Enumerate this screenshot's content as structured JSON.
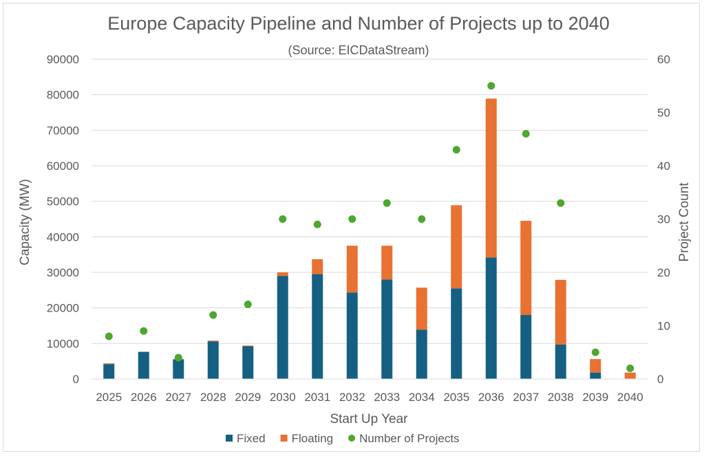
{
  "chart_data": {
    "type": "bar",
    "stacked": true,
    "title": "Europe Capacity Pipeline and Number of Projects up to 2040",
    "subtitle": "(Source: EICDataStream)",
    "xlabel": "Start Up Year",
    "ylabel": "Capacity (MW)",
    "y2label": "Project Count",
    "ylim": [
      0,
      90000
    ],
    "y2lim": [
      0,
      60
    ],
    "yticks": [
      "0",
      "10000",
      "20000",
      "30000",
      "40000",
      "50000",
      "60000",
      "70000",
      "80000",
      "90000"
    ],
    "y2ticks": [
      "0",
      "10",
      "20",
      "30",
      "40",
      "50",
      "60"
    ],
    "grid": true,
    "legend_position": "bottom",
    "categories": [
      "2025",
      "2026",
      "2027",
      "2028",
      "2029",
      "2030",
      "2031",
      "2032",
      "2033",
      "2034",
      "2035",
      "2036",
      "2037",
      "2038",
      "2039",
      "2040"
    ],
    "series": [
      {
        "name": "Fixed",
        "type": "bar",
        "axis": "left",
        "color": "#156082",
        "values": [
          4200,
          7600,
          5500,
          10600,
          9200,
          29000,
          29500,
          24300,
          28000,
          13900,
          25500,
          34200,
          18000,
          9700,
          1800,
          0
        ]
      },
      {
        "name": "Floating",
        "type": "bar",
        "axis": "left",
        "color": "#e97132",
        "values": [
          200,
          100,
          100,
          200,
          200,
          1000,
          4200,
          13200,
          9500,
          11800,
          23400,
          44700,
          26500,
          18200,
          3800,
          1800
        ]
      },
      {
        "name": "Number of Projects",
        "type": "scatter",
        "axis": "right",
        "color": "#4ea72e",
        "values": [
          8,
          9,
          4,
          12,
          14,
          30,
          29,
          30,
          33,
          30,
          43,
          55,
          46,
          33,
          5,
          2
        ]
      }
    ]
  }
}
